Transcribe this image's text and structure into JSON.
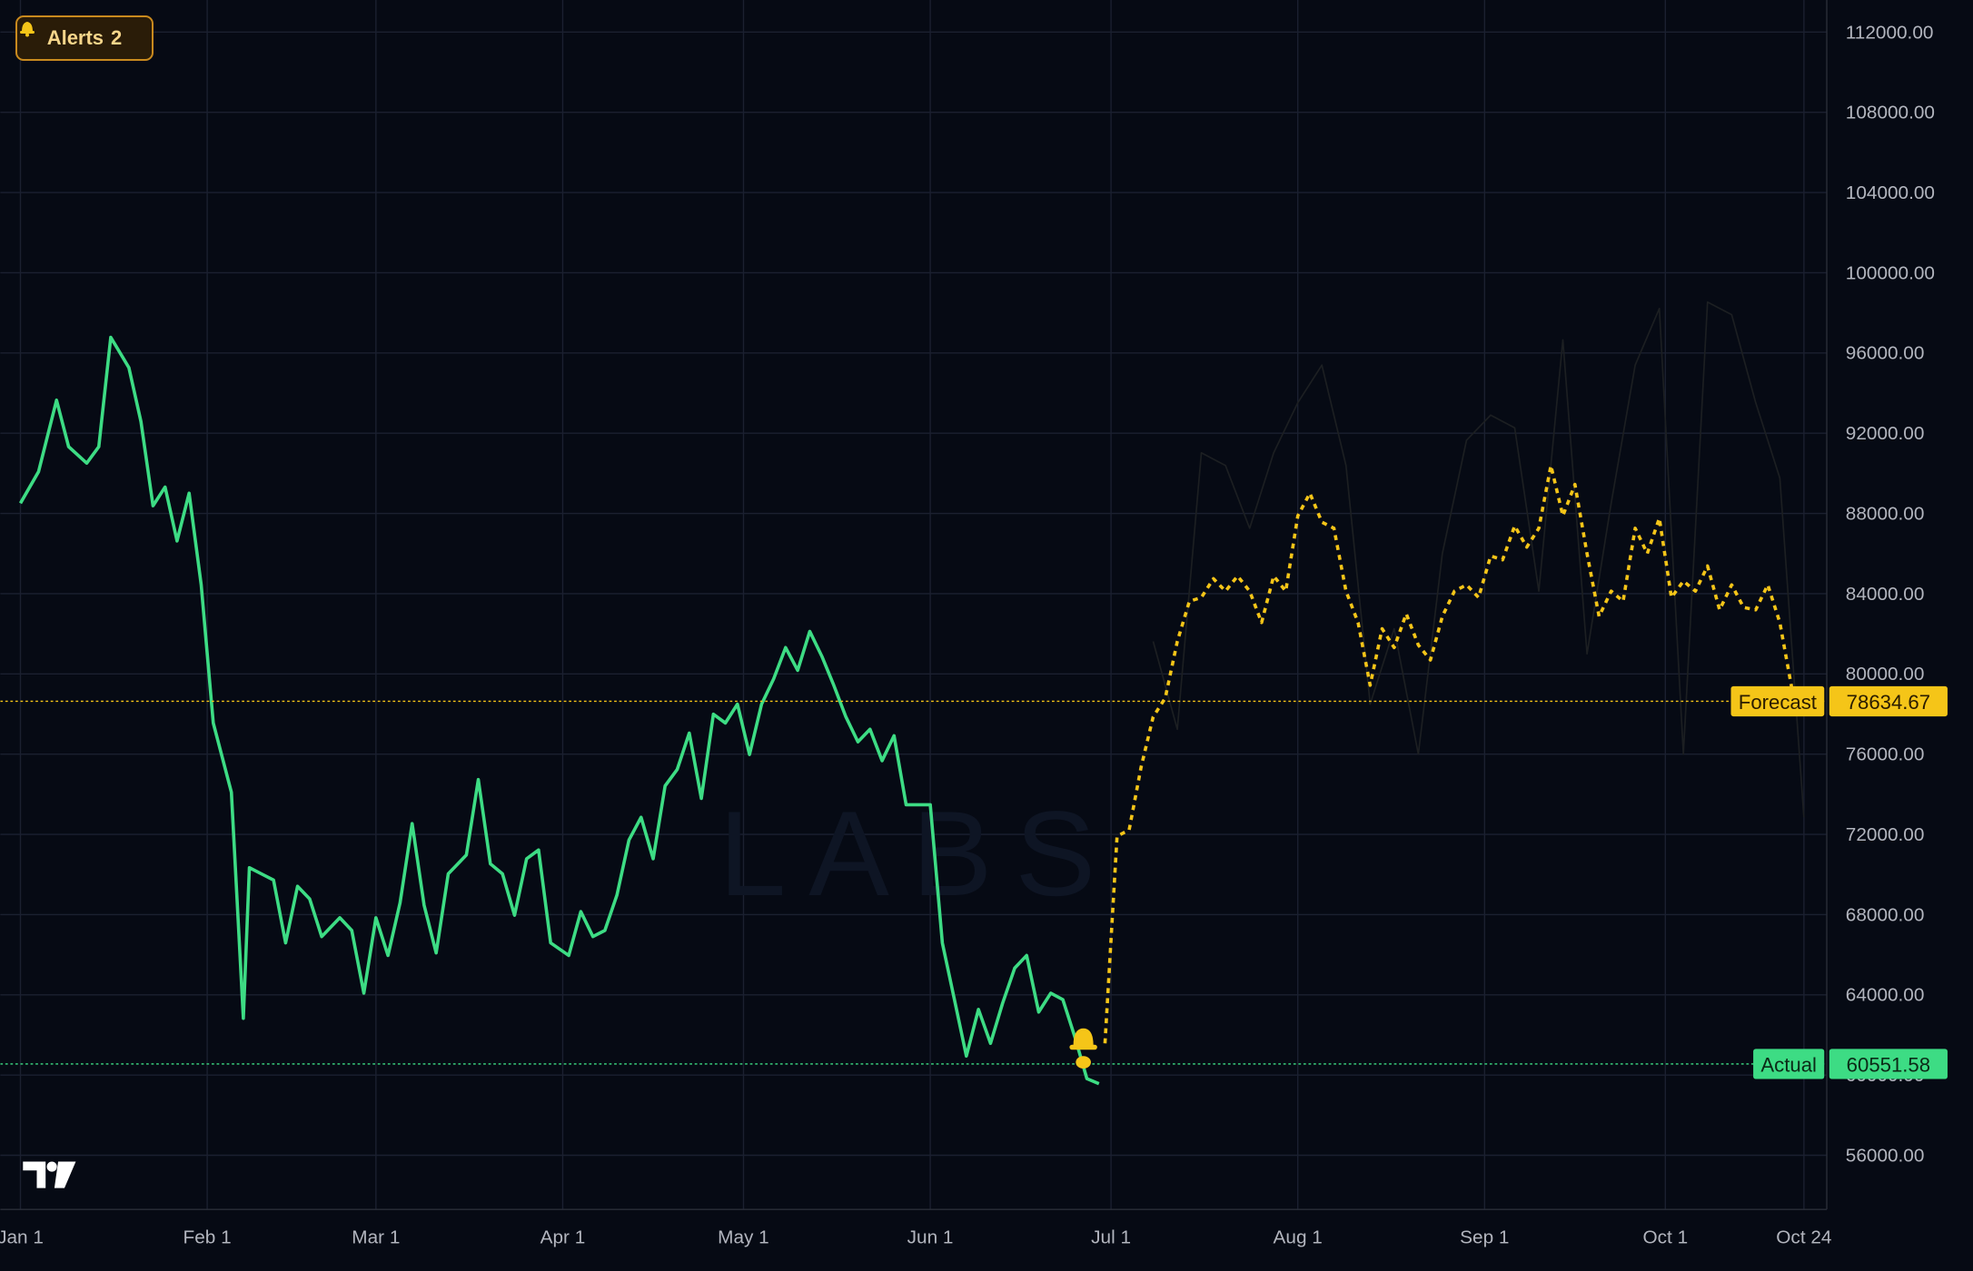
{
  "ui": {
    "alerts_label": "Alerts",
    "alerts_count": 2,
    "watermark": "LABS"
  },
  "chart_data": {
    "type": "line",
    "ylim": [
      53300,
      113600
    ],
    "yticks": [
      {
        "value": 56000,
        "label": "56000.00"
      },
      {
        "value": 60000,
        "label": "60000.00"
      },
      {
        "value": 64000,
        "label": "64000.00"
      },
      {
        "value": 68000,
        "label": "68000.00"
      },
      {
        "value": 72000,
        "label": "72000.00"
      },
      {
        "value": 76000,
        "label": "76000.00"
      },
      {
        "value": 80000,
        "label": "80000.00"
      },
      {
        "value": 84000,
        "label": "84000.00"
      },
      {
        "value": 88000,
        "label": "88000.00"
      },
      {
        "value": 92000,
        "label": "92000.00"
      },
      {
        "value": 96000,
        "label": "96000.00"
      },
      {
        "value": 100000,
        "label": "100000.00"
      },
      {
        "value": 104000,
        "label": "104000.00"
      },
      {
        "value": 108000,
        "label": "108000.00"
      },
      {
        "value": 112000,
        "label": "112000.00"
      }
    ],
    "xticks": [
      "Jan 1",
      "Feb 1",
      "Mar 1",
      "Apr 1",
      "May 1",
      "Jun 1",
      "Jul 1",
      "Aug 1",
      "Sep 1",
      "Oct 1",
      "Oct 24"
    ],
    "grid": true,
    "series": [
      {
        "name": "Actual",
        "color": "#3ddc84",
        "style": "solid",
        "last_price": 60551.58,
        "x": [
          "Jan 1",
          "Jan 4",
          "Jan 7",
          "Jan 9",
          "Jan 12",
          "Jan 14",
          "Jan 16",
          "Jan 19",
          "Jan 21",
          "Jan 23",
          "Jan 25",
          "Jan 27",
          "Jan 29",
          "Jan 31",
          "Feb 2",
          "Feb 5",
          "Feb 7",
          "Feb 8",
          "Feb 10",
          "Feb 12",
          "Feb 14",
          "Feb 16",
          "Feb 18",
          "Feb 20",
          "Feb 23",
          "Feb 25",
          "Feb 27",
          "Mar 1",
          "Mar 3",
          "Mar 5",
          "Mar 7",
          "Mar 9",
          "Mar 11",
          "Mar 13",
          "Mar 16",
          "Mar 18",
          "Mar 20",
          "Mar 22",
          "Mar 24",
          "Mar 26",
          "Mar 28",
          "Mar 30",
          "Apr 2",
          "Apr 4",
          "Apr 6",
          "Apr 8",
          "Apr 10",
          "Apr 12",
          "Apr 14",
          "Apr 16",
          "Apr 18",
          "Apr 20",
          "Apr 22",
          "Apr 24",
          "Apr 26",
          "Apr 28",
          "Apr 30",
          "May 2",
          "May 4",
          "May 6",
          "May 8",
          "May 10",
          "May 12",
          "May 14",
          "May 16",
          "May 18",
          "May 20",
          "May 22",
          "May 24",
          "May 26",
          "May 28",
          "May 30",
          "Jun 1",
          "Jun 3",
          "Jun 5",
          "Jun 7",
          "Jun 9",
          "Jun 11",
          "Jun 13",
          "Jun 15",
          "Jun 17",
          "Jun 19",
          "Jun 21",
          "Jun 23",
          "Jun 25",
          "Jun 27",
          "Jun 29"
        ],
        "values": [
          88510,
          90080,
          93650,
          91330,
          90510,
          91330,
          96780,
          95270,
          92580,
          88380,
          89320,
          86630,
          89010,
          84440,
          77550,
          74100,
          62830,
          70340,
          70030,
          69720,
          66590,
          69410,
          68780,
          66900,
          67840,
          67210,
          64080,
          67840,
          65960,
          68590,
          72540,
          68470,
          66090,
          70030,
          70970,
          74730,
          70530,
          70030,
          67970,
          70780,
          71220,
          66590,
          65960,
          68150,
          66900,
          67210,
          68970,
          71720,
          72850,
          70780,
          74420,
          75230,
          77050,
          73790,
          77990,
          77550,
          78490,
          75980,
          78490,
          79750,
          81310,
          80180,
          82120,
          80880,
          79430,
          77860,
          76610,
          77240,
          75670,
          76920,
          73480,
          73480,
          73480,
          66590,
          63760,
          60950,
          63270,
          61580,
          63580,
          65330,
          65960,
          63140,
          64080,
          63760,
          61890,
          59820,
          59570
        ]
      },
      {
        "name": "Forecast",
        "color": "#f5c518",
        "style": "dotted",
        "last_price": 78634.67,
        "x": [
          "Jun 30",
          "Jul 2",
          "Jul 4",
          "Jul 6",
          "Jul 8",
          "Jul 10",
          "Jul 12",
          "Jul 14",
          "Jul 16",
          "Jul 18",
          "Jul 20",
          "Jul 22",
          "Jul 24",
          "Jul 26",
          "Jul 28",
          "Jul 30",
          "Aug 1",
          "Aug 3",
          "Aug 5",
          "Aug 7",
          "Aug 9",
          "Aug 11",
          "Aug 13",
          "Aug 15",
          "Aug 17",
          "Aug 19",
          "Aug 21",
          "Aug 23",
          "Aug 25",
          "Aug 27",
          "Aug 29",
          "Aug 31",
          "Sep 2",
          "Sep 4",
          "Sep 6",
          "Sep 8",
          "Sep 10",
          "Sep 12",
          "Sep 14",
          "Sep 16",
          "Sep 18",
          "Sep 20",
          "Sep 22",
          "Sep 24",
          "Sep 26",
          "Sep 28",
          "Sep 30",
          "Oct 2",
          "Oct 4",
          "Oct 6",
          "Oct 8",
          "Oct 10",
          "Oct 12",
          "Oct 14",
          "Oct 16",
          "Oct 18",
          "Oct 20",
          "Oct 22"
        ],
        "values": [
          61580,
          71910,
          72220,
          75350,
          77860,
          78800,
          81620,
          83620,
          83810,
          84750,
          84130,
          84880,
          84130,
          82560,
          84880,
          84130,
          87880,
          89010,
          87570,
          87260,
          84130,
          82560,
          79430,
          82250,
          81310,
          83000,
          81440,
          80690,
          82870,
          84130,
          84440,
          83810,
          85880,
          85690,
          87380,
          86320,
          87260,
          90390,
          87880,
          89450,
          86000,
          82870,
          84130,
          83620,
          87260,
          86000,
          87760,
          83810,
          84630,
          84130,
          85380,
          83190,
          84440,
          83310,
          83190,
          84440,
          82560,
          79250
        ]
      },
      {
        "color": "#1c1f22",
        "style": "faint",
        "x": [
          "Jul 8",
          "Jul 12",
          "Jul 16",
          "Jul 20",
          "Jul 24",
          "Jul 28",
          "Aug 1",
          "Aug 5",
          "Aug 9",
          "Aug 13",
          "Aug 17",
          "Aug 21",
          "Aug 25",
          "Aug 29",
          "Sep 2",
          "Sep 6",
          "Sep 10",
          "Sep 14",
          "Sep 18",
          "Sep 22",
          "Sep 26",
          "Sep 30",
          "Oct 4",
          "Oct 8",
          "Oct 12",
          "Oct 16",
          "Oct 20",
          "Oct 24"
        ],
        "values": [
          81620,
          77240,
          91020,
          90390,
          87260,
          91020,
          93520,
          95400,
          90390,
          78490,
          82250,
          76000,
          86000,
          91650,
          92900,
          92270,
          84130,
          96660,
          81000,
          88510,
          95400,
          98220,
          76000,
          98540,
          97910,
          93520,
          89760,
          72850
        ]
      }
    ]
  }
}
